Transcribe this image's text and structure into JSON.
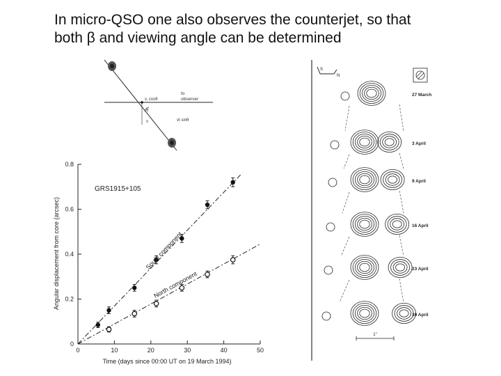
{
  "slide": {
    "title_line1": "In micro-QSO one also observes the counterjet, so that",
    "title_line2": "both β and viewing angle can be determined"
  },
  "geometry_figure": {
    "labels": {
      "to_observer_1": "to",
      "to_observer_2": "observer",
      "v_cos": "v, cosθ",
      "theta": "θ",
      "v": "v",
      "v_sin": "vt sinθ"
    }
  },
  "chart_data": {
    "type": "scatter",
    "title": "GRS1915+105",
    "xlabel": "Time (days since 00:00 UT on 19 March 1994)",
    "ylabel": "Angular displacement from core (arcsec)",
    "xlim": [
      0,
      50
    ],
    "ylim": [
      0,
      0.8
    ],
    "x_ticks": [
      "0",
      "10",
      "20",
      "30",
      "40",
      "50"
    ],
    "y_ticks": [
      "0",
      "0.2",
      "0.4",
      "0.6",
      "0.8"
    ],
    "grid": false,
    "series": [
      {
        "name": "South component",
        "marker": "filled",
        "x": [
          5.5,
          8.5,
          15.5,
          21.5,
          28.5,
          35.5,
          42.5
        ],
        "y": [
          0.085,
          0.15,
          0.25,
          0.375,
          0.47,
          0.62,
          0.72
        ],
        "err": [
          0.012,
          0.015,
          0.015,
          0.018,
          0.018,
          0.018,
          0.02
        ]
      },
      {
        "name": "North component",
        "marker": "open",
        "x": [
          8.5,
          15.5,
          21.5,
          28.5,
          35.5,
          42.5
        ],
        "y": [
          0.065,
          0.135,
          0.18,
          0.25,
          0.31,
          0.375
        ],
        "err": [
          0.012,
          0.015,
          0.015,
          0.015,
          0.015,
          0.018
        ]
      }
    ],
    "fits": [
      {
        "name": "South component",
        "x": [
          0,
          45
        ],
        "y": [
          0,
          0.76
        ]
      },
      {
        "name": "North component",
        "x": [
          0,
          50
        ],
        "y": [
          0,
          0.445
        ]
      }
    ]
  },
  "contour_figure": {
    "compass": {
      "south": "S",
      "north": "N"
    },
    "epochs": [
      "27 March",
      "3 April",
      "9 April",
      "16 April",
      "23 April",
      "30 April"
    ],
    "scale_label": "1\""
  }
}
